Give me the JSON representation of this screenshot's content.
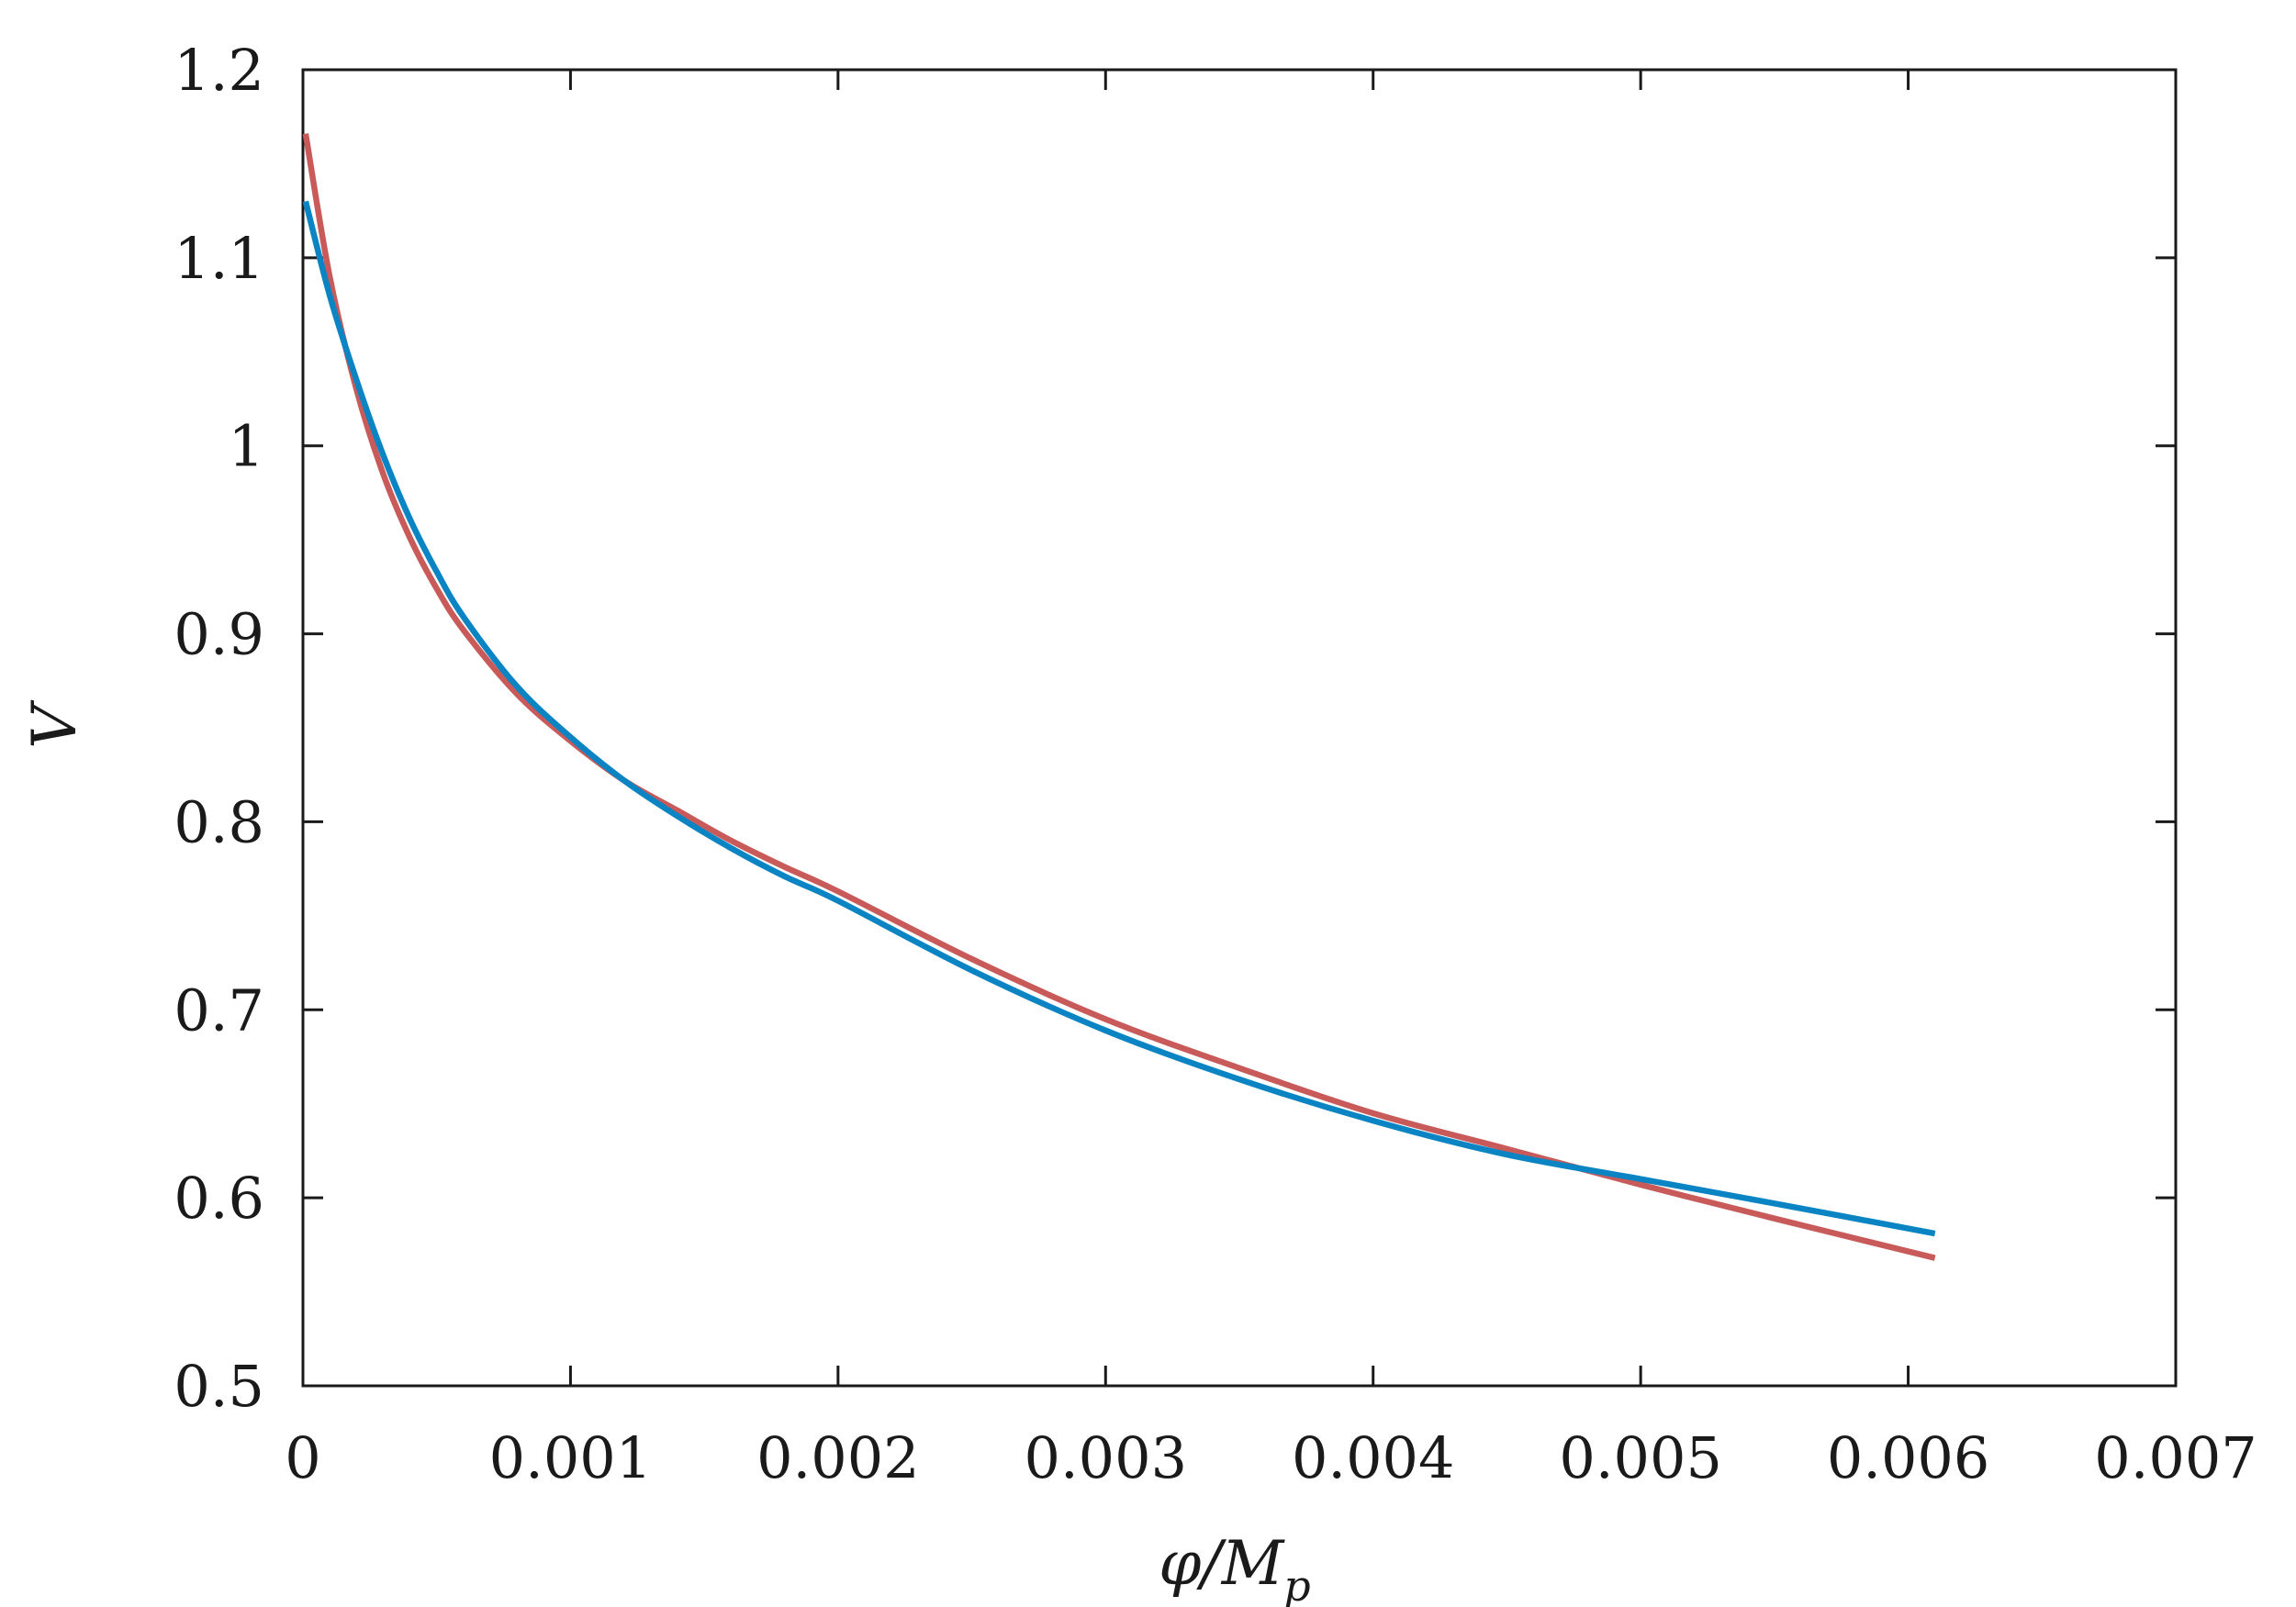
{
  "chart_data": {
    "type": "line",
    "title": "",
    "xlabel": "φ/M",
    "xlabel_sub": "p",
    "ylabel": "V",
    "xlim": [
      0,
      0.007
    ],
    "ylim": [
      0.5,
      1.2
    ],
    "x_ticks": [
      {
        "value": 0,
        "label": "0"
      },
      {
        "value": 0.001,
        "label": "0.001"
      },
      {
        "value": 0.002,
        "label": "0.002"
      },
      {
        "value": 0.003,
        "label": "0.003"
      },
      {
        "value": 0.004,
        "label": "0.004"
      },
      {
        "value": 0.005,
        "label": "0.005"
      },
      {
        "value": 0.006,
        "label": "0.006"
      },
      {
        "value": 0.007,
        "label": "0.007"
      }
    ],
    "y_ticks": [
      {
        "value": 0.5,
        "label": "0.5"
      },
      {
        "value": 0.6,
        "label": "0.6"
      },
      {
        "value": 0.7,
        "label": "0.7"
      },
      {
        "value": 0.8,
        "label": "0.8"
      },
      {
        "value": 0.9,
        "label": "0.9"
      },
      {
        "value": 1.0,
        "label": "1"
      },
      {
        "value": 1.1,
        "label": "1.1"
      },
      {
        "value": 1.2,
        "label": "1.2"
      }
    ],
    "grid": false,
    "legend": "none",
    "series": [
      {
        "color": "#c85a5a",
        "x": [
          1e-05,
          0.0001,
          0.0002,
          0.0003,
          0.0004,
          0.0005,
          0.0006,
          0.0008,
          0.001,
          0.0012,
          0.0014,
          0.0016,
          0.0018,
          0.002,
          0.0025,
          0.003,
          0.0035,
          0.004,
          0.0045,
          0.005,
          0.0055,
          0.0061
        ],
        "y": [
          1.166,
          1.09,
          1.03,
          0.985,
          0.951,
          0.924,
          0.902,
          0.868,
          0.843,
          0.822,
          0.806,
          0.79,
          0.776,
          0.763,
          0.727,
          0.695,
          0.669,
          0.645,
          0.626,
          0.607,
          0.589,
          0.568
        ]
      },
      {
        "color": "#0a84c2",
        "x": [
          1e-05,
          0.0001,
          0.0002,
          0.0003,
          0.0004,
          0.0005,
          0.0006,
          0.0008,
          0.001,
          0.0012,
          0.0014,
          0.0016,
          0.0018,
          0.002,
          0.0025,
          0.003,
          0.0035,
          0.004,
          0.0045,
          0.005,
          0.0055,
          0.0061
        ],
        "y": [
          1.13,
          1.08,
          1.035,
          0.995,
          0.961,
          0.933,
          0.909,
          0.872,
          0.845,
          0.822,
          0.803,
          0.786,
          0.771,
          0.758,
          0.721,
          0.689,
          0.663,
          0.641,
          0.623,
          0.61,
          0.597,
          0.581
        ]
      }
    ]
  }
}
